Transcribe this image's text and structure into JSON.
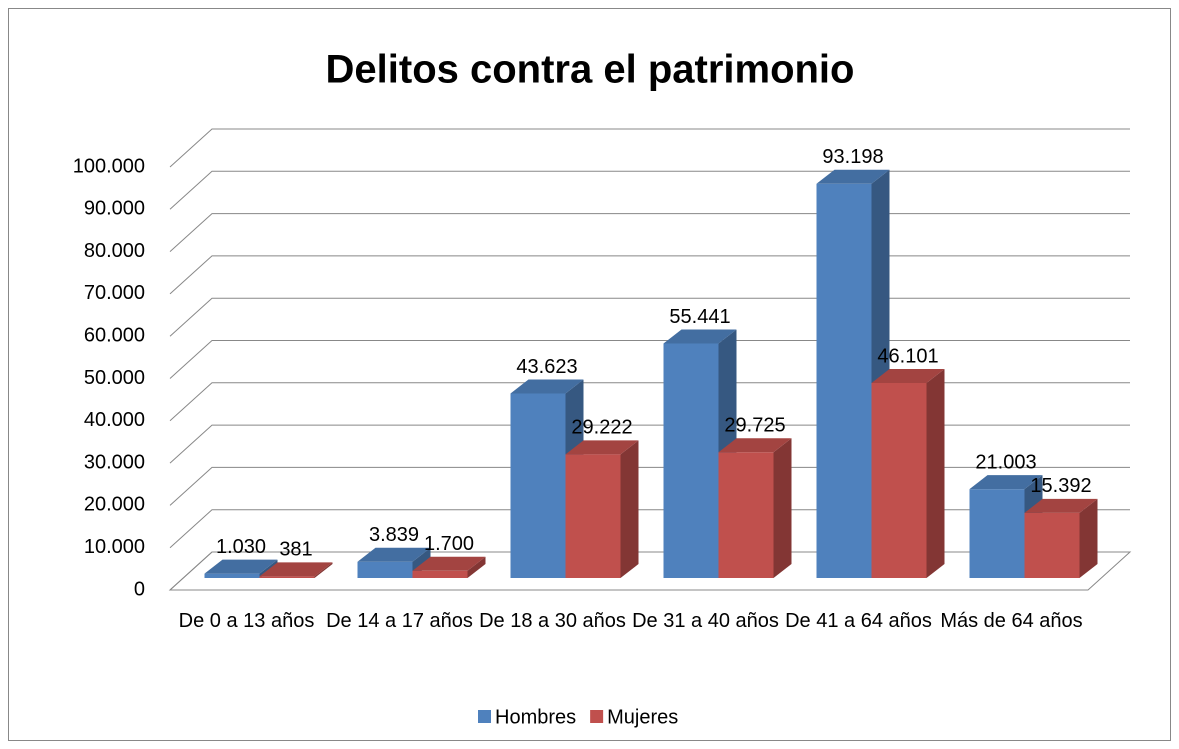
{
  "chart_data": {
    "type": "bar3d",
    "title": "Delitos contra el patrimonio",
    "categories": [
      "De 0 a 13 años",
      "De 14 a 17 años",
      "De 18 a 30 años",
      "De 31 a 40 años",
      "De 41 a 64 años",
      "Más de 64 años"
    ],
    "series": [
      {
        "name": "Hombres",
        "color": "#4f81bd",
        "values": [
          1030,
          3839,
          43623,
          55441,
          93198,
          21003
        ],
        "value_labels": [
          "1.030",
          "3.839",
          "43.623",
          "55.441",
          "93.198",
          "21.003"
        ]
      },
      {
        "name": "Mujeres",
        "color": "#c0504d",
        "values": [
          381,
          1700,
          29222,
          29725,
          46101,
          15392
        ],
        "value_labels": [
          "381",
          "1.700",
          "29.222",
          "29.725",
          "46.101",
          "15.392"
        ]
      }
    ],
    "ylim": [
      0,
      100000
    ],
    "yticks": [
      0,
      {
        "value": 10000,
        "label": "10.000"
      },
      {
        "value": 20000,
        "label": "20.000"
      },
      {
        "value": 30000,
        "label": "30.000"
      },
      {
        "value": 40000,
        "label": "40.000"
      },
      {
        "value": 50000,
        "label": "50.000"
      },
      {
        "value": 60000,
        "label": "60.000"
      },
      {
        "value": 70000,
        "label": "70.000"
      },
      {
        "value": 80000,
        "label": "80.000"
      },
      {
        "value": 90000,
        "label": "90.000"
      },
      {
        "value": 100000,
        "label": "100.000"
      }
    ],
    "grid": true,
    "legend": "bottom"
  }
}
